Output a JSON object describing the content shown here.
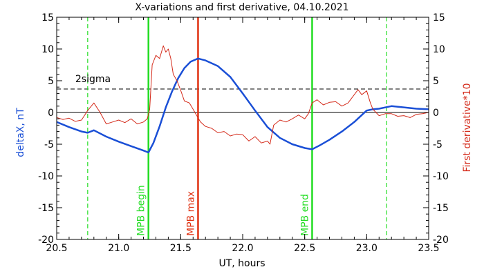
{
  "chart_data": {
    "type": "line",
    "title": "X-variations and first derivative, 04.10.2021",
    "xlabel": "UT, hours",
    "ylabel_left": "deltaX, nT",
    "ylabel_right": "First derivative*10",
    "xlim": [
      20.5,
      23.5
    ],
    "ylim": [
      -20,
      15
    ],
    "x_ticks": [
      "20.5",
      "21.0",
      "21.5",
      "22.0",
      "22.5",
      "23.0",
      "23.5"
    ],
    "y_ticks_left": [
      "15",
      "10",
      "5",
      "0",
      "-5",
      "-10",
      "-15",
      "-20"
    ],
    "y_ticks_right": [
      "15",
      "10",
      "5",
      "0",
      "-5",
      "-10",
      "-15",
      "-20"
    ],
    "colors": {
      "deltaX": "#1a4fd6",
      "derivative": "#d42a1a",
      "mpb_max": "#e03010",
      "mpb_bounds": "#22dd22",
      "sigma": "#000000"
    },
    "series": [
      {
        "role": "deltaX",
        "x": [
          20.5,
          20.6,
          20.7,
          20.75,
          20.8,
          20.9,
          21.0,
          21.1,
          21.2,
          21.24,
          21.28,
          21.33,
          21.38,
          21.43,
          21.48,
          21.53,
          21.58,
          21.64,
          21.7,
          21.8,
          21.9,
          22.0,
          22.1,
          22.2,
          22.3,
          22.4,
          22.5,
          22.56,
          22.62,
          22.7,
          22.8,
          22.9,
          23.0,
          23.05,
          23.1,
          23.2,
          23.3,
          23.4,
          23.5
        ],
        "y": [
          -1.5,
          -2.3,
          -3.0,
          -3.2,
          -2.8,
          -3.8,
          -4.6,
          -5.3,
          -6.0,
          -6.3,
          -4.8,
          -2.2,
          0.8,
          3.3,
          5.4,
          7.0,
          8.0,
          8.5,
          8.2,
          7.3,
          5.6,
          3.0,
          0.3,
          -2.3,
          -4.0,
          -5.0,
          -5.6,
          -5.8,
          -5.2,
          -4.3,
          -3.0,
          -1.5,
          0.3,
          0.5,
          0.6,
          1.0,
          0.8,
          0.6,
          0.5
        ]
      },
      {
        "role": "derivative",
        "x": [
          20.5,
          20.55,
          20.6,
          20.65,
          20.7,
          20.75,
          20.8,
          20.85,
          20.9,
          20.95,
          21.0,
          21.05,
          21.1,
          21.15,
          21.2,
          21.23,
          21.25,
          21.27,
          21.3,
          21.33,
          21.36,
          21.38,
          21.4,
          21.42,
          21.44,
          21.47,
          21.5,
          21.53,
          21.57,
          21.6,
          21.63,
          21.66,
          21.7,
          21.75,
          21.8,
          21.85,
          21.9,
          21.95,
          22.0,
          22.05,
          22.1,
          22.15,
          22.2,
          22.22,
          22.25,
          22.3,
          22.35,
          22.4,
          22.45,
          22.5,
          22.53,
          22.56,
          22.6,
          22.65,
          22.7,
          22.75,
          22.8,
          22.85,
          22.9,
          22.93,
          22.96,
          23.0,
          23.03,
          23.05,
          23.1,
          23.15,
          23.2,
          23.25,
          23.3,
          23.35,
          23.4,
          23.45,
          23.5
        ],
        "y": [
          -0.8,
          -1.1,
          -0.9,
          -1.4,
          -1.2,
          0.3,
          1.5,
          0.0,
          -1.8,
          -1.5,
          -1.2,
          -1.6,
          -1.0,
          -1.8,
          -1.5,
          -1.0,
          0.5,
          7.5,
          9.0,
          8.5,
          10.5,
          9.5,
          10.0,
          8.5,
          6.0,
          5.0,
          3.5,
          1.8,
          1.5,
          0.5,
          -0.5,
          -1.5,
          -2.2,
          -2.5,
          -3.2,
          -3.0,
          -3.7,
          -3.4,
          -3.5,
          -4.5,
          -3.8,
          -4.8,
          -4.5,
          -5.0,
          -2.0,
          -1.2,
          -1.5,
          -1.0,
          -0.4,
          -1.0,
          -0.2,
          1.5,
          2.0,
          1.2,
          1.6,
          1.7,
          1.0,
          1.5,
          2.8,
          3.6,
          2.8,
          3.4,
          1.5,
          0.5,
          -0.5,
          -0.2,
          -0.2,
          -0.6,
          -0.5,
          -0.8,
          -0.3,
          -0.2,
          0.0
        ]
      }
    ],
    "sigma_level": 3.7,
    "sigma_label": "2sigma",
    "vlines": [
      {
        "x": 20.75,
        "style": "dashed",
        "role": "mpb_bounds",
        "label": ""
      },
      {
        "x": 21.24,
        "style": "solid",
        "role": "mpb_bounds",
        "label": "MPB begin"
      },
      {
        "x": 21.64,
        "style": "solid",
        "role": "mpb_max",
        "label": "MPB max"
      },
      {
        "x": 22.56,
        "style": "solid",
        "role": "mpb_bounds",
        "label": "MPB end"
      },
      {
        "x": 23.16,
        "style": "dashed",
        "role": "mpb_bounds",
        "label": ""
      }
    ],
    "zero_line": true,
    "grid": false
  }
}
